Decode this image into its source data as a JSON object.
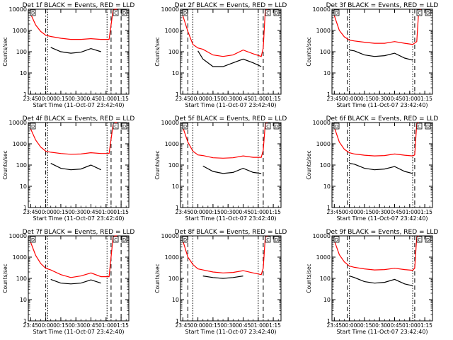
{
  "figure": {
    "start_time_label": "Start Time (11-Oct-07 23:42:40)",
    "y_axis_label": "Counts/sec",
    "y_tick_labels": [
      "1",
      "10",
      "100",
      "1000",
      "10000"
    ],
    "x_tick_labels": [
      "23:45",
      "00:00",
      "00:15",
      "00:30",
      "00:45",
      "01:00",
      "01:15"
    ],
    "colors": {
      "events": "#000000",
      "lld": "#ff0000",
      "axes": "#000000",
      "background": "#ffffff"
    },
    "box_marker_labels": [
      "D",
      "C",
      "D"
    ]
  },
  "chart_data": [
    {
      "type": "line",
      "scale_y": "log",
      "ylim": [
        1,
        10000
      ],
      "xlim": [
        "23:42:40",
        "01:22:40"
      ],
      "title": "Det 1f BLACK = Events, RED = LLD",
      "xlabel": "Start Time (11-Oct-07 23:42:40)",
      "ylabel": "Counts/sec",
      "x": [
        "23:45",
        "23:50",
        "23:55",
        "00:00",
        "00:05",
        "00:15",
        "00:25",
        "00:35",
        "00:45",
        "00:55",
        "01:03",
        "01:07",
        "01:09",
        "01:11"
      ],
      "series": [
        {
          "name": "Events",
          "values": [
            null,
            null,
            null,
            null,
            160,
            100,
            85,
            95,
            140,
            100,
            null,
            null,
            null,
            null
          ],
          "gap_after": [],
          "color": "#000000"
        },
        {
          "name": "LLD",
          "values": [
            6000,
            1800,
            900,
            600,
            520,
            430,
            380,
            380,
            410,
            380,
            380,
            9000,
            10000,
            10000
          ],
          "color": "#ff0000"
        }
      ],
      "verticals": [
        [
          "00:00",
          "dashdot"
        ],
        [
          "00:02",
          "dotted"
        ],
        [
          "01:01",
          "dotted"
        ],
        [
          "01:05",
          "dashed"
        ],
        [
          "01:15",
          "dashed"
        ]
      ]
    },
    {
      "type": "line",
      "scale_y": "log",
      "ylim": [
        1,
        10000
      ],
      "xlim": [
        "23:42:40",
        "01:22:40"
      ],
      "title": "Det 2f BLACK = Events, RED = LLD",
      "xlabel": "Start Time (11-Oct-07 23:42:40)",
      "ylabel": "Counts/sec",
      "x": [
        "23:45",
        "23:50",
        "23:55",
        "00:00",
        "00:05",
        "00:15",
        "00:25",
        "00:35",
        "00:45",
        "00:55",
        "01:03",
        "01:05",
        "01:07",
        "01:09"
      ],
      "series": [
        {
          "name": "Events",
          "values": [
            null,
            null,
            null,
            110,
            45,
            20,
            20,
            30,
            45,
            30,
            20,
            null,
            null,
            null
          ],
          "color": "#000000"
        },
        {
          "name": "LLD",
          "values": [
            5000,
            900,
            220,
            150,
            130,
            70,
            60,
            70,
            120,
            80,
            60,
            150,
            9000,
            10000
          ],
          "color": "#ff0000"
        }
      ],
      "verticals": [
        [
          "23:50",
          "dashed"
        ],
        [
          "23:55",
          "dotted"
        ],
        [
          "01:00",
          "dotted"
        ],
        [
          "01:05",
          "dashed"
        ]
      ]
    },
    {
      "type": "line",
      "scale_y": "log",
      "ylim": [
        1,
        10000
      ],
      "xlim": [
        "23:42:40",
        "01:22:40"
      ],
      "title": "Det 3f BLACK = Events, RED = LLD",
      "xlabel": "Start Time (11-Oct-07 23:42:40)",
      "ylabel": "Counts/sec",
      "x": [
        "23:45",
        "23:50",
        "23:55",
        "00:00",
        "00:05",
        "00:15",
        "00:25",
        "00:35",
        "00:45",
        "00:55",
        "01:03",
        "01:07",
        "01:09",
        "01:11"
      ],
      "series": [
        {
          "name": "Events",
          "values": [
            null,
            null,
            null,
            120,
            110,
            70,
            60,
            65,
            85,
            50,
            40,
            null,
            null,
            null
          ],
          "color": "#000000"
        },
        {
          "name": "LLD",
          "values": [
            5000,
            1000,
            500,
            350,
            320,
            280,
            250,
            250,
            300,
            250,
            220,
            300,
            9000,
            10000
          ],
          "color": "#ff0000"
        }
      ],
      "verticals": [
        [
          "23:58",
          "dashed"
        ],
        [
          "00:00",
          "dotted"
        ],
        [
          "01:03",
          "dotted"
        ],
        [
          "01:05",
          "dashed"
        ]
      ]
    },
    {
      "type": "line",
      "scale_y": "log",
      "ylim": [
        1,
        10000
      ],
      "xlim": [
        "23:42:40",
        "01:22:40"
      ],
      "title": "Det 4f BLACK = Events, RED = LLD",
      "xlabel": "Start Time (11-Oct-07 23:42:40)",
      "ylabel": "Counts/sec",
      "x": [
        "23:45",
        "23:50",
        "23:55",
        "00:00",
        "00:05",
        "00:15",
        "00:25",
        "00:35",
        "00:45",
        "00:55",
        "01:03",
        "01:07",
        "01:09",
        "01:11"
      ],
      "series": [
        {
          "name": "Events",
          "values": [
            null,
            null,
            null,
            null,
            120,
            70,
            60,
            65,
            100,
            60,
            null,
            null,
            null,
            null
          ],
          "color": "#000000"
        },
        {
          "name": "LLD",
          "values": [
            5000,
            1500,
            700,
            450,
            400,
            350,
            320,
            330,
            380,
            350,
            350,
            8000,
            10000,
            10000
          ],
          "color": "#ff0000"
        }
      ],
      "verticals": [
        [
          "00:00",
          "dashdot"
        ],
        [
          "00:02",
          "dotted"
        ],
        [
          "01:01",
          "dotted"
        ],
        [
          "01:05",
          "dashed"
        ],
        [
          "01:15",
          "dashed"
        ]
      ]
    },
    {
      "type": "line",
      "scale_y": "log",
      "ylim": [
        1,
        10000
      ],
      "xlim": [
        "23:42:40",
        "01:22:40"
      ],
      "title": "Det 5f BLACK = Events, RED = LLD",
      "xlabel": "Start Time (11-Oct-07 23:42:40)",
      "ylabel": "Counts/sec",
      "x": [
        "23:45",
        "23:50",
        "23:55",
        "00:00",
        "00:05",
        "00:15",
        "00:25",
        "00:35",
        "00:45",
        "00:55",
        "01:03",
        "01:05",
        "01:07",
        "01:09"
      ],
      "series": [
        {
          "name": "Events",
          "values": [
            null,
            null,
            null,
            null,
            90,
            50,
            40,
            45,
            70,
            45,
            40,
            null,
            null,
            null
          ],
          "color": "#000000"
        },
        {
          "name": "LLD",
          "values": [
            6000,
            1200,
            450,
            300,
            280,
            220,
            210,
            220,
            270,
            230,
            230,
            500,
            9000,
            10000
          ],
          "color": "#ff0000"
        }
      ],
      "verticals": [
        [
          "23:50",
          "dashed"
        ],
        [
          "23:55",
          "dotted"
        ],
        [
          "01:00",
          "dotted"
        ],
        [
          "01:05",
          "dashed"
        ]
      ]
    },
    {
      "type": "line",
      "scale_y": "log",
      "ylim": [
        1,
        10000
      ],
      "xlim": [
        "23:42:40",
        "01:22:40"
      ],
      "title": "Det 6f BLACK = Events, RED = LLD",
      "xlabel": "Start Time (11-Oct-07 23:42:40)",
      "ylabel": "Counts/sec",
      "x": [
        "23:45",
        "23:50",
        "23:55",
        "00:00",
        "00:05",
        "00:15",
        "00:25",
        "00:35",
        "00:45",
        "00:55",
        "01:03",
        "01:05",
        "01:07",
        "01:09"
      ],
      "series": [
        {
          "name": "Events",
          "values": [
            null,
            null,
            null,
            120,
            110,
            70,
            60,
            65,
            85,
            50,
            40,
            null,
            null,
            null
          ],
          "color": "#000000"
        },
        {
          "name": "LLD",
          "values": [
            6000,
            1200,
            550,
            380,
            330,
            290,
            270,
            280,
            330,
            290,
            270,
            300,
            9000,
            10000
          ],
          "color": "#ff0000"
        }
      ],
      "verticals": [
        [
          "23:58",
          "dashed"
        ],
        [
          "00:00",
          "dotted"
        ],
        [
          "01:03",
          "dotted"
        ],
        [
          "01:05",
          "dashed"
        ]
      ]
    },
    {
      "type": "line",
      "scale_y": "log",
      "ylim": [
        1,
        10000
      ],
      "xlim": [
        "23:42:40",
        "01:22:40"
      ],
      "title": "Det 7f BLACK = Events, RED = LLD",
      "xlabel": "Start Time (11-Oct-07 23:42:40)",
      "ylabel": "Counts/sec",
      "x": [
        "23:45",
        "23:50",
        "23:55",
        "00:00",
        "00:05",
        "00:15",
        "00:25",
        "00:35",
        "00:45",
        "00:55",
        "01:03",
        "01:07",
        "01:09",
        "01:11"
      ],
      "series": [
        {
          "name": "Events",
          "values": [
            null,
            null,
            null,
            null,
            90,
            60,
            55,
            60,
            85,
            60,
            null,
            null,
            null,
            null
          ],
          "color": "#000000"
        },
        {
          "name": "LLD",
          "values": [
            5000,
            1200,
            500,
            300,
            250,
            150,
            110,
            130,
            180,
            120,
            120,
            9000,
            10000,
            10000
          ],
          "color": "#ff0000"
        }
      ],
      "verticals": [
        [
          "00:00",
          "dashdot"
        ],
        [
          "00:02",
          "dotted"
        ],
        [
          "01:01",
          "dotted"
        ],
        [
          "01:05",
          "dashed"
        ],
        [
          "01:15",
          "dashed"
        ]
      ]
    },
    {
      "type": "line",
      "scale_y": "log",
      "ylim": [
        1,
        10000
      ],
      "xlim": [
        "23:42:40",
        "01:22:40"
      ],
      "title": "Det 8f BLACK = Events, RED = LLD",
      "xlabel": "Start Time (11-Oct-07 23:42:40)",
      "ylabel": "Counts/sec",
      "x": [
        "23:45",
        "23:50",
        "23:55",
        "00:00",
        "00:05",
        "00:15",
        "00:25",
        "00:35",
        "00:45",
        "00:55",
        "01:03",
        "01:05",
        "01:07",
        "01:09"
      ],
      "series": [
        {
          "name": "Events",
          "values": [
            null,
            null,
            null,
            null,
            130,
            110,
            100,
            110,
            130,
            null,
            100,
            null,
            null,
            null
          ],
          "color": "#000000"
        },
        {
          "name": "LLD",
          "values": [
            6000,
            1000,
            450,
            280,
            250,
            200,
            180,
            190,
            230,
            180,
            150,
            300,
            9000,
            10000
          ],
          "color": "#ff0000"
        }
      ],
      "verticals": [
        [
          "23:50",
          "dashed"
        ],
        [
          "23:55",
          "dotted"
        ],
        [
          "01:00",
          "dotted"
        ],
        [
          "01:05",
          "dashed"
        ]
      ]
    },
    {
      "type": "line",
      "scale_y": "log",
      "ylim": [
        1,
        10000
      ],
      "xlim": [
        "23:42:40",
        "01:22:40"
      ],
      "title": "Det 9f BLACK = Events, RED = LLD",
      "xlabel": "Start Time (11-Oct-07 23:42:40)",
      "ylabel": "Counts/sec",
      "x": [
        "23:45",
        "23:50",
        "23:55",
        "00:00",
        "00:05",
        "00:15",
        "00:25",
        "00:35",
        "00:45",
        "00:55",
        "01:03",
        "01:05",
        "01:07",
        "01:09"
      ],
      "series": [
        {
          "name": "Events",
          "values": [
            null,
            null,
            null,
            130,
            110,
            70,
            60,
            65,
            90,
            55,
            45,
            null,
            null,
            null
          ],
          "color": "#000000"
        },
        {
          "name": "LLD",
          "values": [
            6000,
            1300,
            600,
            380,
            330,
            280,
            250,
            260,
            300,
            260,
            240,
            300,
            9000,
            10000
          ],
          "color": "#ff0000"
        }
      ],
      "verticals": [
        [
          "23:58",
          "dashed"
        ],
        [
          "00:00",
          "dotted"
        ],
        [
          "01:03",
          "dotted"
        ],
        [
          "01:05",
          "dashed"
        ]
      ]
    }
  ]
}
